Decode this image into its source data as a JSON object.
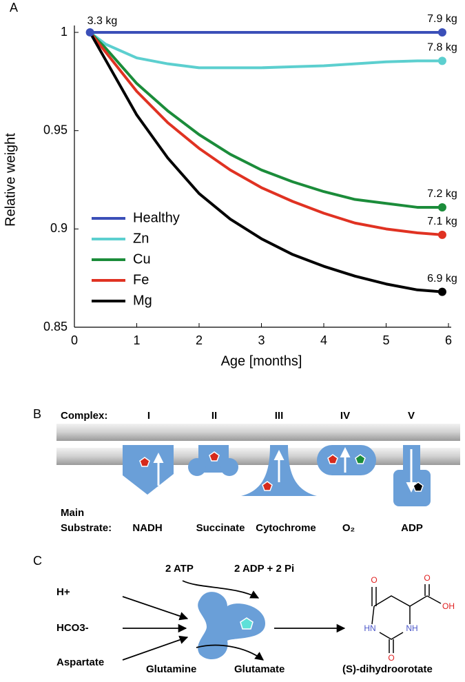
{
  "chart_data": {
    "type": "line",
    "panel": "A",
    "x": [
      0.25,
      0.5,
      1,
      1.5,
      2,
      2.5,
      3,
      3.5,
      4,
      4.5,
      5,
      5.5,
      5.9
    ],
    "series": [
      {
        "name": "Healthy",
        "color": "#3b4fb8",
        "values": [
          1,
          1,
          1,
          1,
          1,
          1,
          1,
          1,
          1,
          1,
          1,
          1,
          1
        ],
        "end_label": "7.9 kg"
      },
      {
        "name": "Zn",
        "color": "#5ccfcf",
        "values": [
          1,
          0.994,
          0.987,
          0.984,
          0.982,
          0.982,
          0.982,
          0.9825,
          0.983,
          0.984,
          0.985,
          0.9855,
          0.9855
        ],
        "end_label": "7.8 kg"
      },
      {
        "name": "Cu",
        "color": "#1b8c3a",
        "values": [
          1,
          0.992,
          0.974,
          0.96,
          0.948,
          0.938,
          0.93,
          0.924,
          0.919,
          0.915,
          0.913,
          0.911,
          0.911
        ],
        "end_label": "7.2 kg"
      },
      {
        "name": "Fe",
        "color": "#e03222",
        "values": [
          1,
          0.99,
          0.97,
          0.954,
          0.941,
          0.93,
          0.921,
          0.914,
          0.908,
          0.903,
          0.9,
          0.898,
          0.897
        ],
        "end_label": "7.1 kg"
      },
      {
        "name": "Mg",
        "color": "#000000",
        "values": [
          1,
          0.986,
          0.958,
          0.936,
          0.918,
          0.905,
          0.895,
          0.887,
          0.881,
          0.876,
          0.872,
          0.869,
          0.868
        ],
        "end_label": "6.9 kg"
      }
    ],
    "start_label": "3.3 kg",
    "xlabel": "Age [months]",
    "ylabel": "Relative weight",
    "xlim": [
      0,
      6
    ],
    "xticks": [
      0,
      1,
      2,
      3,
      4,
      5,
      6
    ],
    "ylim": [
      0.85,
      1
    ],
    "yticks": [
      0.85,
      0.9,
      0.95,
      1
    ],
    "legend": "lower left"
  },
  "diagram_b": {
    "panel": "B",
    "header": "Complex:",
    "substrate_label": [
      "Main",
      "Substrate:"
    ],
    "complexes": [
      {
        "name": "I",
        "substrate": "NADH"
      },
      {
        "name": "II",
        "substrate": "Succinate"
      },
      {
        "name": "III",
        "substrate": "Cytochrome"
      },
      {
        "name": "IV",
        "substrate": "O₂"
      },
      {
        "name": "V",
        "substrate": "ADP"
      }
    ]
  },
  "diagram_c": {
    "panel": "C",
    "inputs": [
      "H+",
      "HCO3-",
      "Aspartate"
    ],
    "cofactor_in": "2 ATP",
    "cofactor_out": "2 ADP + 2 Pi",
    "donor": "Glutamine",
    "donor_product": "Glutamate",
    "product": "(S)-dihydroorotate",
    "atoms": [
      "O",
      "O",
      "OH",
      "HN",
      "NH",
      "O"
    ]
  }
}
